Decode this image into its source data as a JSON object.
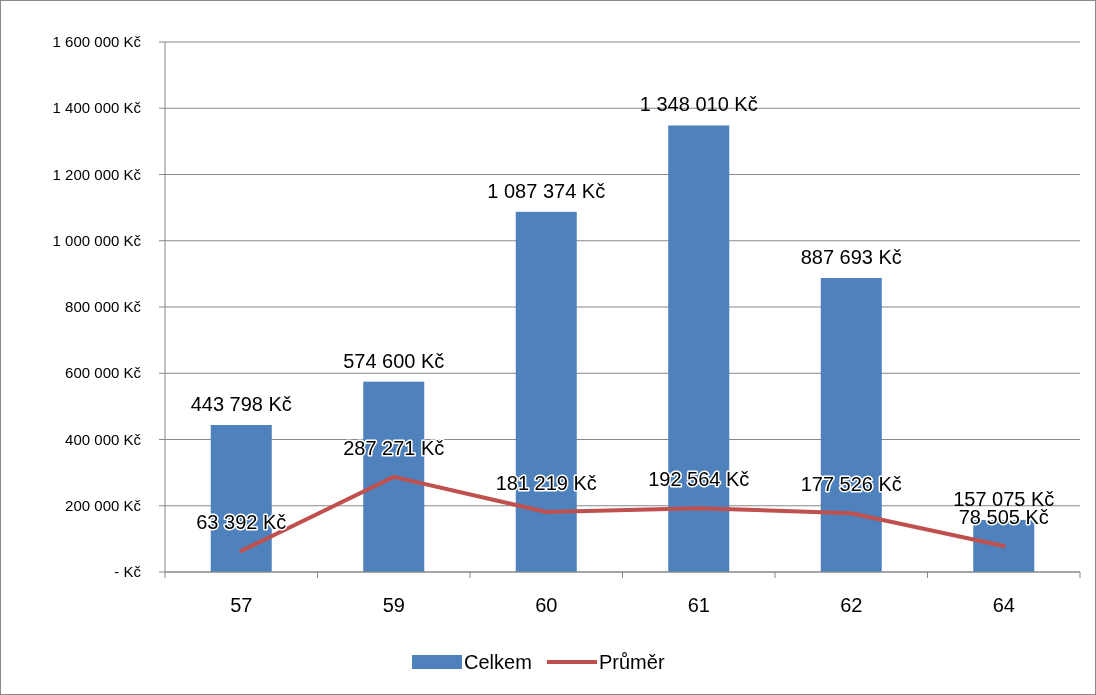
{
  "chart_data": {
    "type": "bar",
    "categories": [
      "57",
      "59",
      "60",
      "61",
      "62",
      "64"
    ],
    "series": [
      {
        "name": "Celkem",
        "color": "#4f81bd",
        "values": [
          443798,
          574600,
          1087374,
          1348010,
          887693,
          157075
        ],
        "value_labels": [
          "443 798 Kč",
          "574 600 Kč",
          "1 087 374 Kč",
          "1 348 010 Kč",
          "887 693 Kč",
          "157 075 Kč"
        ]
      },
      {
        "name": "Průměr",
        "type": "line",
        "color": "#c0504d",
        "values": [
          63392,
          287271,
          181219,
          192564,
          177526,
          78505
        ],
        "value_labels": [
          "63 392 Kč",
          "287 271 Kč",
          "181 219 Kč",
          "192 564 Kč",
          "177 526 Kč",
          "78 505 Kč"
        ]
      }
    ],
    "ylim": [
      0,
      1600000
    ],
    "yticks": [
      {
        "value": 0,
        "label": "-  Kč"
      },
      {
        "value": 200000,
        "label": "200 000 Kč"
      },
      {
        "value": 400000,
        "label": "400 000 Kč"
      },
      {
        "value": 600000,
        "label": "600 000 Kč"
      },
      {
        "value": 800000,
        "label": "800 000 Kč"
      },
      {
        "value": 1000000,
        "label": "1 000 000 Kč"
      },
      {
        "value": 1200000,
        "label": "1 200 000 Kč"
      },
      {
        "value": 1400000,
        "label": "1 400 000 Kč"
      },
      {
        "value": 1600000,
        "label": "1 600 000 Kč"
      }
    ],
    "grid": "y",
    "legend": "bottom",
    "marker": "none",
    "line_style": "solid"
  }
}
